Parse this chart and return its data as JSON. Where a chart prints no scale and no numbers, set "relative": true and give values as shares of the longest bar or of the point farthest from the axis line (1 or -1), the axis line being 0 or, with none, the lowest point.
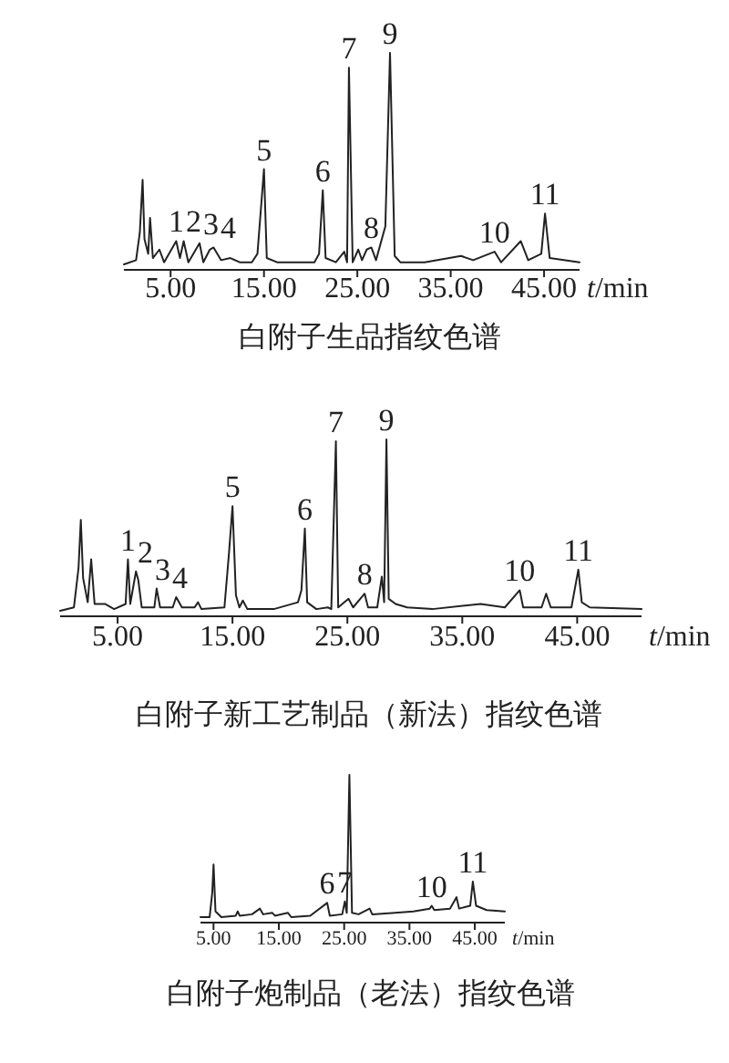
{
  "chart_data": [
    {
      "type": "line",
      "relative": true,
      "title": "白附子生品指纹色谱",
      "xlabel": "t/min",
      "xlim": [
        0,
        48.8
      ],
      "xticks": [
        {
          "value": 5,
          "label": "5.00"
        },
        {
          "value": 15,
          "label": "15.00"
        },
        {
          "value": 25,
          "label": "25.00"
        },
        {
          "value": 35,
          "label": "35.00"
        },
        {
          "value": 45,
          "label": "45.00"
        }
      ],
      "series": [
        {
          "color": "#222222",
          "x": [
            0,
            1.3,
            1.7,
            2.0,
            2.2,
            2.6,
            2.8,
            3.1,
            3.8,
            4.3,
            5.6,
            6.0,
            6.4,
            6.9,
            8.1,
            8.5,
            9.2,
            9.6,
            10.4,
            11.4,
            12.4,
            13.7,
            14.3,
            15.0,
            15.3,
            16.4,
            17.7,
            20.4,
            20.9,
            21.3,
            21.6,
            22.7,
            23.6,
            23.9,
            24.1,
            24.5,
            25.1,
            25.5,
            26.0,
            26.5,
            27.0,
            28.0,
            28.5,
            29.0,
            29.6,
            32.2,
            36.1,
            37.4,
            39.7,
            40.4,
            42.5,
            43.3,
            44.7,
            45.1,
            45.6,
            48.8
          ],
          "values": [
            0,
            0.02,
            0.15,
            0.4,
            0.12,
            0.05,
            0.22,
            0.03,
            0.07,
            0.01,
            0.11,
            0.03,
            0.11,
            0.01,
            0.1,
            0.01,
            0.07,
            0.08,
            0.02,
            0.03,
            0.01,
            0.01,
            0.05,
            0.45,
            0.03,
            0.01,
            0.01,
            0.01,
            0.05,
            0.35,
            0.03,
            0.01,
            0.06,
            0.01,
            0.93,
            0.01,
            0.07,
            0.02,
            0.07,
            0.08,
            0.02,
            0.18,
            1.0,
            0.04,
            0.01,
            0.01,
            0.04,
            0.02,
            0.06,
            0.01,
            0.11,
            0.02,
            0.05,
            0.24,
            0.03,
            0.01
          ]
        }
      ],
      "annotations": [
        {
          "text": "1",
          "x": 5.6,
          "y": 0.11
        },
        {
          "text": "2",
          "x": 6.4,
          "y": 0.11
        },
        {
          "text": "3",
          "x": 8.1,
          "y": 0.1
        },
        {
          "text": "4",
          "x": 9.6,
          "y": 0.08
        },
        {
          "text": "5",
          "x": 15.0,
          "y": 0.45
        },
        {
          "text": "6",
          "x": 21.3,
          "y": 0.35
        },
        {
          "text": "7",
          "x": 24.1,
          "y": 0.93
        },
        {
          "text": "8",
          "x": 26.5,
          "y": 0.08
        },
        {
          "text": "9",
          "x": 28.5,
          "y": 1.0
        },
        {
          "text": "10",
          "x": 39.7,
          "y": 0.06
        },
        {
          "text": "11",
          "x": 45.1,
          "y": 0.24
        }
      ]
    },
    {
      "type": "line",
      "relative": true,
      "title": "白附子新工艺制品（新法）指纹色谱",
      "xlabel": "t/min",
      "xlim": [
        0,
        50.6
      ],
      "xticks": [
        {
          "value": 5,
          "label": "5.00"
        },
        {
          "value": 15,
          "label": "15.00"
        },
        {
          "value": 25,
          "label": "25.00"
        },
        {
          "value": 35,
          "label": "35.00"
        },
        {
          "value": 45,
          "label": "45.00"
        }
      ],
      "series": [
        {
          "color": "#222222",
          "x": [
            0,
            1.2,
            1.6,
            1.8,
            2.0,
            2.4,
            2.7,
            3.0,
            3.9,
            4.7,
            5.7,
            5.9,
            6.1,
            6.6,
            6.8,
            7.1,
            8.2,
            8.4,
            8.7,
            9.8,
            10.1,
            10.6,
            11.7,
            12.0,
            12.3,
            14.3,
            14.7,
            15.0,
            15.3,
            15.6,
            15.9,
            16.3,
            18.6,
            20.7,
            21.0,
            21.3,
            21.5,
            22.3,
            23.3,
            23.6,
            24.0,
            24.2,
            25.1,
            25.5,
            26.5,
            26.8,
            27.6,
            28.0,
            28.2,
            28.4,
            28.6,
            29.2,
            30.2,
            32.4,
            36.6,
            38.7,
            40.0,
            40.3,
            41.9,
            42.3,
            42.7,
            44.5,
            45.1,
            45.4,
            46.1,
            50.6
          ],
          "values": [
            0,
            0.02,
            0.25,
            0.53,
            0.19,
            0.05,
            0.3,
            0.04,
            0.04,
            0.01,
            0.04,
            0.3,
            0.04,
            0.23,
            0.18,
            0.02,
            0.02,
            0.13,
            0.02,
            0.02,
            0.08,
            0.02,
            0.02,
            0.05,
            0.01,
            0.02,
            0.34,
            0.61,
            0.09,
            0.02,
            0.06,
            0.01,
            0.01,
            0.05,
            0.12,
            0.48,
            0.05,
            0.01,
            0.02,
            0.01,
            0.99,
            0.02,
            0.07,
            0.02,
            0.1,
            0.02,
            0.02,
            0.2,
            0.05,
            1.0,
            0.07,
            0.04,
            0.02,
            0.01,
            0.04,
            0.02,
            0.12,
            0.02,
            0.02,
            0.1,
            0.02,
            0.02,
            0.24,
            0.05,
            0.02,
            0.01
          ]
        }
      ],
      "annotations": [
        {
          "text": "1",
          "x": 5.9,
          "y": 0.3
        },
        {
          "text": "2",
          "x": 6.6,
          "y": 0.23
        },
        {
          "text": "3",
          "x": 8.4,
          "y": 0.13
        },
        {
          "text": "4",
          "x": 10.1,
          "y": 0.08
        },
        {
          "text": "5",
          "x": 15.0,
          "y": 0.61
        },
        {
          "text": "6",
          "x": 21.3,
          "y": 0.48
        },
        {
          "text": "7",
          "x": 24.0,
          "y": 0.99
        },
        {
          "text": "8",
          "x": 26.5,
          "y": 0.1
        },
        {
          "text": "9",
          "x": 28.4,
          "y": 1.0
        },
        {
          "text": "10",
          "x": 40.0,
          "y": 0.12
        },
        {
          "text": "11",
          "x": 45.1,
          "y": 0.24
        }
      ]
    },
    {
      "type": "line",
      "relative": true,
      "title": "白附子炮制品（老法）指纹色谱",
      "xlabel": "t/min",
      "xlim": [
        3.0,
        49.6
      ],
      "xticks": [
        {
          "value": 5,
          "label": "5.00"
        },
        {
          "value": 15,
          "label": "15.00"
        },
        {
          "value": 25,
          "label": "25.00"
        },
        {
          "value": 35,
          "label": "35.00"
        },
        {
          "value": 45,
          "label": "45.00"
        }
      ],
      "series": [
        {
          "color": "#222222",
          "x": [
            3.0,
            4.4,
            4.8,
            5.0,
            5.3,
            6.2,
            8.4,
            8.7,
            9.0,
            10.9,
            12.1,
            12.6,
            14.0,
            14.4,
            16.4,
            16.9,
            19.8,
            22.4,
            22.8,
            24.7,
            25.1,
            25.4,
            25.8,
            26.2,
            27.2,
            28.9,
            29.3,
            32.8,
            35.6,
            38.1,
            38.4,
            38.8,
            41.2,
            42.2,
            42.6,
            44.3,
            44.7,
            45.2,
            46.8,
            49.6
          ],
          "values": [
            0,
            0,
            0.17,
            0.37,
            0.04,
            0,
            0.01,
            0.04,
            0.01,
            0.02,
            0.06,
            0.02,
            0.03,
            0.01,
            0.03,
            0,
            0.01,
            0.1,
            0.01,
            0.02,
            0.11,
            0.03,
            1.0,
            0.03,
            0.02,
            0.06,
            0.02,
            0.03,
            0.04,
            0.06,
            0.08,
            0.05,
            0.06,
            0.14,
            0.06,
            0.08,
            0.25,
            0.08,
            0.05,
            0.04
          ]
        }
      ],
      "annotations": [
        {
          "text": "6",
          "x": 22.4,
          "y": 0.1
        },
        {
          "text": "7",
          "x": 25.1,
          "y": 0.11
        },
        {
          "text": "10",
          "x": 38.4,
          "y": 0.08
        },
        {
          "text": "11",
          "x": 44.7,
          "y": 0.25
        }
      ]
    }
  ]
}
